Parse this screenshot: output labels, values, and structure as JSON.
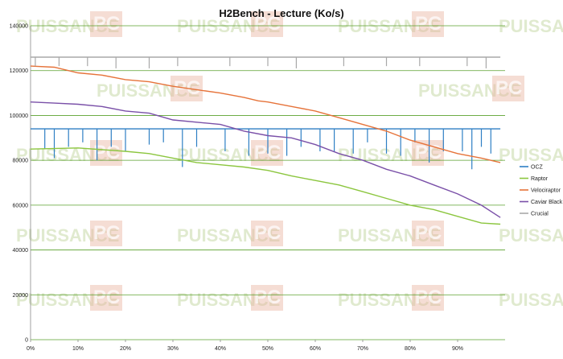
{
  "watermark": {
    "text": "PUISSANCE",
    "badge": "PC"
  },
  "chart_data": {
    "type": "line",
    "title": "H2Bench - Lecture (Ko/s)",
    "xlabel": "",
    "ylabel": "",
    "xlim": [
      0,
      100
    ],
    "ylim": [
      0,
      140000
    ],
    "x_ticks": [
      "0%",
      "10%",
      "20%",
      "30%",
      "40%",
      "50%",
      "60%",
      "70%",
      "80%",
      "90%"
    ],
    "x_tick_values": [
      0,
      10,
      20,
      30,
      40,
      50,
      60,
      70,
      80,
      90
    ],
    "y_ticks": [
      "0",
      "20000",
      "40000",
      "60000",
      "80000",
      "100000",
      "120000",
      "140000"
    ],
    "y_tick_values": [
      0,
      20000,
      40000,
      60000,
      80000,
      100000,
      120000,
      140000
    ],
    "grid": "horizontal",
    "legend_position": "right",
    "series": [
      {
        "name": "OCZ",
        "color": "#2e7fc4",
        "x": [
          0,
          99
        ],
        "values": [
          94000,
          94000
        ],
        "dips": [
          [
            3,
            85000
          ],
          [
            5,
            81000
          ],
          [
            8,
            86000
          ],
          [
            11,
            88000
          ],
          [
            14,
            80000
          ],
          [
            17,
            86000
          ],
          [
            20,
            84000
          ],
          [
            25,
            87000
          ],
          [
            28,
            88000
          ],
          [
            32,
            77000
          ],
          [
            35,
            86000
          ],
          [
            41,
            84000
          ],
          [
            46,
            82000
          ],
          [
            50,
            83000
          ],
          [
            54,
            82000
          ],
          [
            57,
            86000
          ],
          [
            61,
            84000
          ],
          [
            64,
            84000
          ],
          [
            68,
            83000
          ],
          [
            71,
            88000
          ],
          [
            75,
            83000
          ],
          [
            78,
            82000
          ],
          [
            81,
            88000
          ],
          [
            84,
            79000
          ],
          [
            87,
            84000
          ],
          [
            91,
            84000
          ],
          [
            93,
            76000
          ],
          [
            95,
            86000
          ],
          [
            97,
            83000
          ]
        ]
      },
      {
        "name": "Raptor",
        "color": "#8cc63f",
        "x": [
          0,
          10,
          20,
          25,
          30,
          35,
          40,
          45,
          50,
          55,
          60,
          65,
          70,
          75,
          80,
          85,
          90,
          95,
          99
        ],
        "values": [
          85000,
          85500,
          84000,
          83000,
          81000,
          79000,
          78000,
          77000,
          75500,
          73000,
          71000,
          69000,
          66000,
          63000,
          60000,
          58000,
          55000,
          52000,
          51500
        ]
      },
      {
        "name": "Velociraptor",
        "color": "#e6733a",
        "x": [
          0,
          5,
          10,
          15,
          20,
          25,
          30,
          35,
          40,
          45,
          48,
          50,
          55,
          60,
          65,
          70,
          75,
          80,
          85,
          90,
          95,
          99
        ],
        "values": [
          122000,
          121500,
          119000,
          118000,
          116000,
          115000,
          113000,
          111500,
          110000,
          108000,
          106500,
          106000,
          104000,
          102000,
          99000,
          96000,
          93000,
          89000,
          86000,
          83000,
          81000,
          79000
        ]
      },
      {
        "name": "Caviar Black",
        "color": "#7a50a8",
        "x": [
          0,
          5,
          10,
          15,
          20,
          25,
          30,
          35,
          40,
          45,
          50,
          55,
          60,
          65,
          70,
          75,
          80,
          85,
          90,
          95,
          99
        ],
        "values": [
          106000,
          105500,
          105000,
          104000,
          102000,
          101000,
          98000,
          97000,
          96000,
          93000,
          91000,
          90000,
          87000,
          83000,
          80000,
          76000,
          73000,
          69000,
          65000,
          60000,
          54500
        ]
      },
      {
        "name": "Crucial",
        "color": "#a8a8a8",
        "x": [
          0,
          99
        ],
        "values": [
          126000,
          126000
        ],
        "dips": [
          [
            1,
            122000
          ],
          [
            6,
            122000
          ],
          [
            12,
            122000
          ],
          [
            18,
            121000
          ],
          [
            25,
            121000
          ],
          [
            31,
            122000
          ],
          [
            42,
            122000
          ],
          [
            50,
            122000
          ],
          [
            56,
            121000
          ],
          [
            66,
            122000
          ],
          [
            75,
            122000
          ],
          [
            82,
            122000
          ],
          [
            92,
            122000
          ],
          [
            96,
            121000
          ]
        ]
      }
    ]
  }
}
